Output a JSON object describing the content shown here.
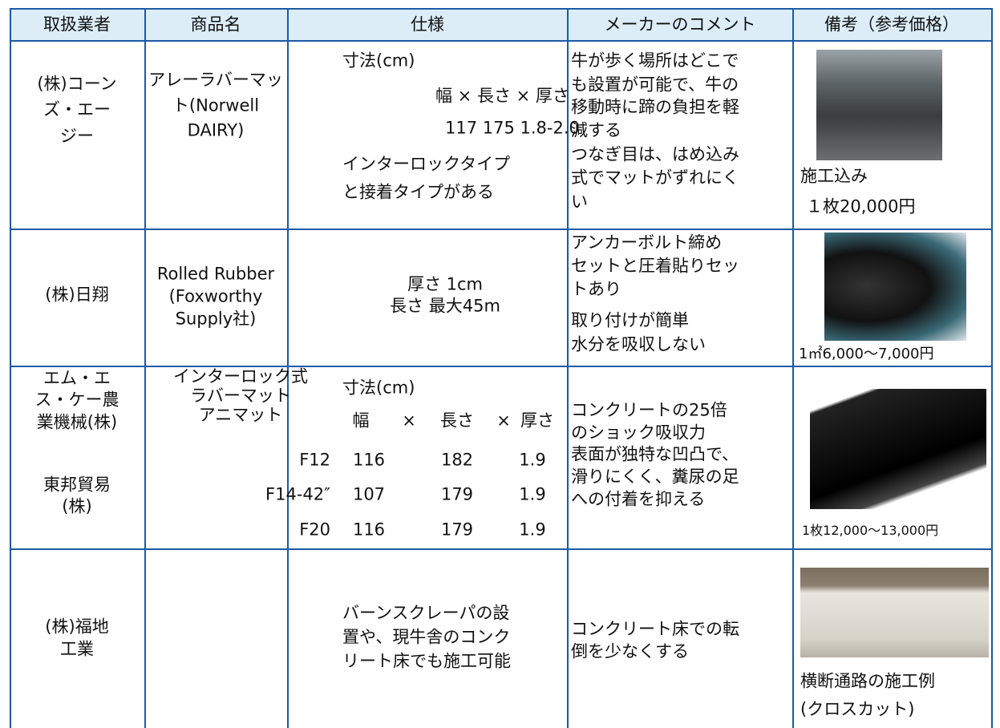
{
  "table": {
    "header": [
      "取扱業者",
      "商品名",
      "仕様",
      "メーカーのコメント",
      "備考（参考価格）"
    ],
    "rows": [
      {
        "company": [
          "(株)コーン",
          "ズ・エー",
          "ジー"
        ],
        "product": [
          "アレーラバーマッ",
          "ト(Norwell",
          "DAIRY)"
        ],
        "spec": [
          "寸法(cm)",
          "幅 × 長さ × 厚さ",
          "117  175  1.8-2.0",
          "インターロックタイプ",
          "と接着タイプがある"
        ],
        "comment": [
          "牛が歩く場所はどこで",
          "も設置が可能で、牛の",
          "移動時に蹄の負担を軽",
          "減する",
          "つなぎ目は、はめ込み",
          "式でマットがずれにく",
          "い"
        ],
        "remark": [
          "施工込み",
          "１枚20,000円"
        ]
      },
      {
        "company": [
          "(株)日翔"
        ],
        "product": [
          "Rolled Rubber",
          "(Foxworthy",
          "Supply社)"
        ],
        "spec": [
          "厚さ 1cm",
          "長さ 最大45m"
        ],
        "comment": [
          "アンカーボルト締め",
          "セットと圧着貼りセッ",
          "トあり",
          "取り付けが簡単",
          "水分を吸収しない"
        ],
        "remark": [
          "1㎡6,000～7,000円"
        ]
      },
      {
        "company": [
          "エム・エ",
          "ス・ケー農",
          "業機械(株)",
          "東邦貿易",
          "(株)"
        ],
        "product": [
          "インターロック式",
          "ラバーマット",
          "アニマット"
        ],
        "models": [
          "F12",
          "F14-42″",
          "F20"
        ],
        "spec_title": "寸法(cm)",
        "spec_header": [
          "幅",
          "×",
          "長さ",
          "×",
          "厚さ"
        ],
        "dimensions": [
          [
            "116",
            "182",
            "1.9"
          ],
          [
            "107",
            "179",
            "1.9"
          ],
          [
            "116",
            "179",
            "1.9"
          ]
        ],
        "comment": [
          "コンクリートの25倍",
          "のショック吸収力",
          "表面が独特な凹凸で、",
          "滑りにくく、糞尿の足",
          "への付着を抑える"
        ],
        "remark": [
          "1枚12,000～13,000円"
        ]
      },
      {
        "company": [
          "(株)福地",
          "工業"
        ],
        "spec": [
          "バーンスクレーパの設",
          "置や、現牛舎のコンク",
          "リート床でも施工可能"
        ],
        "comment": [
          "コンクリート床での転",
          "倒を少なくする"
        ],
        "remark": [
          "横断通路の施工例",
          "(クロスカット)"
        ]
      }
    ]
  }
}
